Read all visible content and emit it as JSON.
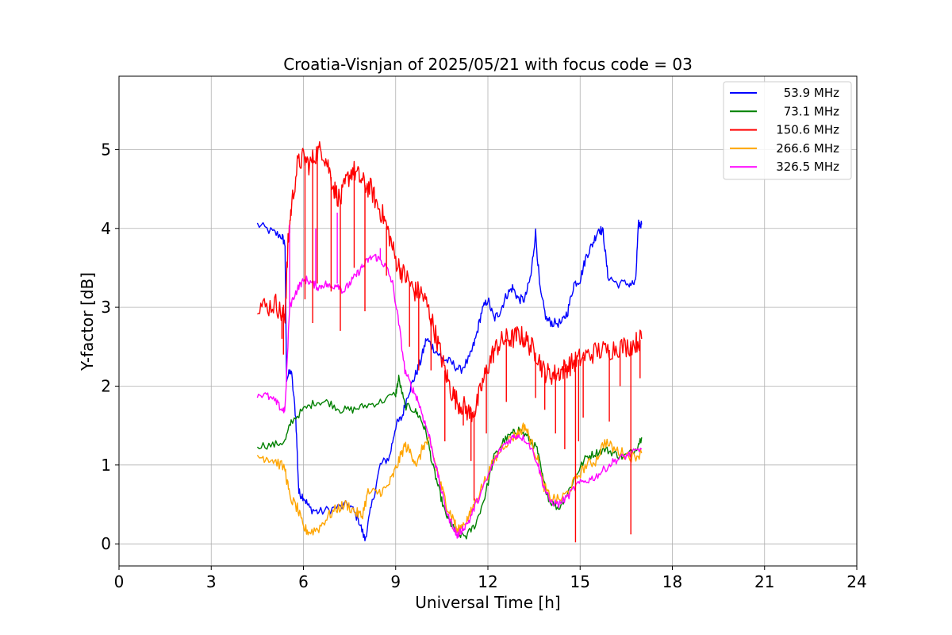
{
  "chart_data": {
    "type": "line",
    "title": "Croatia-Visnjan of 2025/05/21 with focus code = 03",
    "xlabel": "Universal Time [h]",
    "ylabel": "Y-factor [dB]",
    "xlim": [
      0,
      24
    ],
    "ylim": [
      -0.28,
      5.93
    ],
    "xticks": [
      0,
      3,
      6,
      9,
      12,
      15,
      18,
      21,
      24
    ],
    "yticks": [
      0,
      1,
      2,
      3,
      4,
      5
    ],
    "grid": true,
    "legend_position": "top-right",
    "series": [
      {
        "name": "53.9 MHz",
        "color": "#0000ff",
        "points": [
          [
            4.5,
            4.05
          ],
          [
            5.0,
            3.95
          ],
          [
            5.3,
            3.9
          ],
          [
            5.4,
            3.8
          ],
          [
            5.45,
            2.1
          ],
          [
            5.6,
            2.2
          ],
          [
            5.75,
            1.6
          ],
          [
            5.85,
            0.65
          ],
          [
            6.0,
            0.6
          ],
          [
            6.2,
            0.45
          ],
          [
            6.5,
            0.4
          ],
          [
            7.0,
            0.45
          ],
          [
            7.5,
            0.5
          ],
          [
            7.8,
            0.3
          ],
          [
            8.0,
            0.05
          ],
          [
            8.2,
            0.45
          ],
          [
            8.5,
            1.0
          ],
          [
            8.8,
            1.1
          ],
          [
            9.0,
            1.5
          ],
          [
            9.2,
            1.6
          ],
          [
            9.4,
            1.9
          ],
          [
            9.6,
            2.1
          ],
          [
            9.8,
            2.3
          ],
          [
            10.0,
            2.6
          ],
          [
            10.2,
            2.5
          ],
          [
            10.5,
            2.35
          ],
          [
            10.8,
            2.3
          ],
          [
            11.1,
            2.2
          ],
          [
            11.4,
            2.35
          ],
          [
            11.6,
            2.6
          ],
          [
            11.8,
            2.95
          ],
          [
            12.0,
            3.1
          ],
          [
            12.2,
            2.85
          ],
          [
            12.4,
            2.95
          ],
          [
            12.6,
            3.15
          ],
          [
            12.8,
            3.25
          ],
          [
            13.0,
            3.1
          ],
          [
            13.2,
            3.1
          ],
          [
            13.4,
            3.4
          ],
          [
            13.55,
            3.95
          ],
          [
            13.7,
            3.2
          ],
          [
            13.9,
            2.85
          ],
          [
            14.1,
            2.8
          ],
          [
            14.4,
            2.8
          ],
          [
            14.6,
            2.95
          ],
          [
            14.8,
            3.3
          ],
          [
            15.0,
            3.35
          ],
          [
            15.2,
            3.65
          ],
          [
            15.4,
            3.8
          ],
          [
            15.6,
            4.0
          ],
          [
            15.75,
            3.95
          ],
          [
            15.9,
            3.4
          ],
          [
            16.2,
            3.3
          ],
          [
            16.6,
            3.3
          ],
          [
            16.8,
            3.3
          ],
          [
            16.9,
            4.05
          ],
          [
            17.0,
            4.05
          ]
        ]
      },
      {
        "name": "73.1 MHz",
        "color": "#008000",
        "points": [
          [
            4.5,
            1.25
          ],
          [
            5.0,
            1.25
          ],
          [
            5.4,
            1.3
          ],
          [
            5.6,
            1.55
          ],
          [
            6.0,
            1.7
          ],
          [
            6.4,
            1.8
          ],
          [
            6.8,
            1.8
          ],
          [
            7.2,
            1.7
          ],
          [
            7.6,
            1.7
          ],
          [
            8.0,
            1.75
          ],
          [
            8.5,
            1.8
          ],
          [
            9.0,
            1.9
          ],
          [
            9.1,
            2.1
          ],
          [
            9.3,
            1.75
          ],
          [
            9.6,
            1.7
          ],
          [
            9.8,
            1.6
          ],
          [
            10.0,
            1.4
          ],
          [
            10.2,
            1.0
          ],
          [
            10.4,
            0.7
          ],
          [
            10.6,
            0.4
          ],
          [
            10.8,
            0.25
          ],
          [
            11.0,
            0.12
          ],
          [
            11.3,
            0.1
          ],
          [
            11.6,
            0.25
          ],
          [
            11.9,
            0.6
          ],
          [
            12.2,
            1.1
          ],
          [
            12.5,
            1.3
          ],
          [
            12.8,
            1.4
          ],
          [
            13.0,
            1.45
          ],
          [
            13.3,
            1.35
          ],
          [
            13.6,
            1.2
          ],
          [
            13.8,
            0.8
          ],
          [
            14.0,
            0.55
          ],
          [
            14.3,
            0.45
          ],
          [
            14.6,
            0.65
          ],
          [
            14.9,
            0.9
          ],
          [
            15.2,
            1.1
          ],
          [
            15.5,
            1.15
          ],
          [
            15.8,
            1.2
          ],
          [
            16.1,
            1.15
          ],
          [
            16.4,
            1.1
          ],
          [
            16.8,
            1.2
          ],
          [
            17.0,
            1.35
          ]
        ]
      },
      {
        "name": "150.6 MHz",
        "color": "#ff0000",
        "points": [
          [
            4.5,
            3.05
          ],
          [
            4.8,
            3.0
          ],
          [
            5.1,
            3.05
          ],
          [
            5.3,
            2.9
          ],
          [
            5.4,
            2.9
          ],
          [
            5.5,
            3.8
          ],
          [
            5.6,
            4.25
          ],
          [
            5.8,
            4.8
          ],
          [
            6.0,
            4.9
          ],
          [
            6.2,
            4.8
          ],
          [
            6.4,
            4.95
          ],
          [
            6.6,
            5.0
          ],
          [
            6.8,
            4.8
          ],
          [
            7.0,
            4.5
          ],
          [
            7.2,
            4.35
          ],
          [
            7.4,
            4.6
          ],
          [
            7.6,
            4.75
          ],
          [
            7.8,
            4.65
          ],
          [
            8.0,
            4.55
          ],
          [
            8.2,
            4.5
          ],
          [
            8.4,
            4.3
          ],
          [
            8.6,
            4.15
          ],
          [
            8.8,
            3.9
          ],
          [
            9.0,
            3.6
          ],
          [
            9.2,
            3.45
          ],
          [
            9.4,
            3.35
          ],
          [
            9.6,
            3.2
          ],
          [
            9.8,
            3.2
          ],
          [
            10.0,
            3.05
          ],
          [
            10.2,
            2.8
          ],
          [
            10.4,
            2.5
          ],
          [
            10.6,
            2.2
          ],
          [
            10.8,
            1.95
          ],
          [
            11.0,
            1.8
          ],
          [
            11.2,
            1.75
          ],
          [
            11.4,
            1.65
          ],
          [
            11.6,
            1.7
          ],
          [
            11.8,
            2.0
          ],
          [
            12.0,
            2.25
          ],
          [
            12.2,
            2.45
          ],
          [
            12.4,
            2.55
          ],
          [
            12.6,
            2.6
          ],
          [
            12.8,
            2.6
          ],
          [
            13.0,
            2.65
          ],
          [
            13.2,
            2.6
          ],
          [
            13.4,
            2.5
          ],
          [
            13.6,
            2.4
          ],
          [
            13.8,
            2.2
          ],
          [
            14.0,
            2.15
          ],
          [
            14.2,
            2.15
          ],
          [
            14.4,
            2.2
          ],
          [
            14.6,
            2.25
          ],
          [
            14.8,
            2.3
          ],
          [
            15.0,
            2.35
          ],
          [
            15.3,
            2.4
          ],
          [
            15.6,
            2.45
          ],
          [
            15.9,
            2.45
          ],
          [
            16.2,
            2.5
          ],
          [
            16.5,
            2.5
          ],
          [
            16.8,
            2.55
          ],
          [
            17.0,
            2.6
          ]
        ]
      },
      {
        "name": "266.6 MHz",
        "color": "#ffa500",
        "points": [
          [
            4.5,
            1.1
          ],
          [
            4.8,
            1.1
          ],
          [
            5.1,
            1.05
          ],
          [
            5.4,
            0.95
          ],
          [
            5.55,
            0.6
          ],
          [
            5.8,
            0.45
          ],
          [
            6.0,
            0.2
          ],
          [
            6.2,
            0.15
          ],
          [
            6.5,
            0.2
          ],
          [
            6.8,
            0.35
          ],
          [
            7.1,
            0.45
          ],
          [
            7.4,
            0.5
          ],
          [
            7.7,
            0.4
          ],
          [
            7.9,
            0.35
          ],
          [
            8.1,
            0.65
          ],
          [
            8.4,
            0.65
          ],
          [
            8.7,
            0.7
          ],
          [
            8.9,
            0.85
          ],
          [
            9.1,
            1.05
          ],
          [
            9.3,
            1.25
          ],
          [
            9.5,
            1.15
          ],
          [
            9.7,
            1.0
          ],
          [
            9.9,
            1.25
          ],
          [
            10.1,
            1.3
          ],
          [
            10.3,
            1.0
          ],
          [
            10.5,
            0.7
          ],
          [
            10.7,
            0.45
          ],
          [
            10.9,
            0.3
          ],
          [
            11.0,
            0.15
          ],
          [
            11.2,
            0.25
          ],
          [
            11.4,
            0.35
          ],
          [
            11.6,
            0.55
          ],
          [
            11.9,
            0.8
          ],
          [
            12.2,
            1.05
          ],
          [
            12.5,
            1.25
          ],
          [
            12.8,
            1.35
          ],
          [
            13.0,
            1.4
          ],
          [
            13.2,
            1.5
          ],
          [
            13.4,
            1.3
          ],
          [
            13.6,
            1.1
          ],
          [
            13.8,
            0.75
          ],
          [
            14.0,
            0.6
          ],
          [
            14.3,
            0.55
          ],
          [
            14.6,
            0.65
          ],
          [
            14.9,
            0.85
          ],
          [
            15.2,
            1.0
          ],
          [
            15.5,
            1.05
          ],
          [
            15.8,
            1.3
          ],
          [
            16.1,
            1.2
          ],
          [
            16.4,
            1.15
          ],
          [
            16.7,
            1.1
          ],
          [
            17.0,
            1.15
          ]
        ]
      },
      {
        "name": "326.5 MHz",
        "color": "#ff00ff",
        "points": [
          [
            4.5,
            1.9
          ],
          [
            4.8,
            1.88
          ],
          [
            5.1,
            1.8
          ],
          [
            5.3,
            1.7
          ],
          [
            5.4,
            1.7
          ],
          [
            5.55,
            3.0
          ],
          [
            5.7,
            3.15
          ],
          [
            5.9,
            3.3
          ],
          [
            6.1,
            3.35
          ],
          [
            6.3,
            3.3
          ],
          [
            6.5,
            3.25
          ],
          [
            6.7,
            3.3
          ],
          [
            6.9,
            3.25
          ],
          [
            7.1,
            3.3
          ],
          [
            7.3,
            3.2
          ],
          [
            7.5,
            3.3
          ],
          [
            7.7,
            3.4
          ],
          [
            7.9,
            3.5
          ],
          [
            8.1,
            3.6
          ],
          [
            8.3,
            3.65
          ],
          [
            8.5,
            3.6
          ],
          [
            8.7,
            3.5
          ],
          [
            8.9,
            3.3
          ],
          [
            9.1,
            2.8
          ],
          [
            9.3,
            2.2
          ],
          [
            9.5,
            2.0
          ],
          [
            9.7,
            1.85
          ],
          [
            9.9,
            1.6
          ],
          [
            10.1,
            1.35
          ],
          [
            10.3,
            1.0
          ],
          [
            10.5,
            0.65
          ],
          [
            10.7,
            0.35
          ],
          [
            10.9,
            0.2
          ],
          [
            11.0,
            0.1
          ],
          [
            11.2,
            0.2
          ],
          [
            11.4,
            0.3
          ],
          [
            11.6,
            0.5
          ],
          [
            11.9,
            0.75
          ],
          [
            12.2,
            1.05
          ],
          [
            12.5,
            1.25
          ],
          [
            12.8,
            1.35
          ],
          [
            13.0,
            1.38
          ],
          [
            13.3,
            1.3
          ],
          [
            13.6,
            1.05
          ],
          [
            13.8,
            0.75
          ],
          [
            14.0,
            0.55
          ],
          [
            14.3,
            0.5
          ],
          [
            14.6,
            0.6
          ],
          [
            14.9,
            0.75
          ],
          [
            15.2,
            0.8
          ],
          [
            15.5,
            0.85
          ],
          [
            15.8,
            0.95
          ],
          [
            16.1,
            1.05
          ],
          [
            16.4,
            1.1
          ],
          [
            16.7,
            1.15
          ],
          [
            17.0,
            1.2
          ]
        ]
      }
    ],
    "spikes": [
      {
        "series": "150.6 MHz",
        "x": [
          5.3,
          5.35,
          6.05,
          6.3,
          6.45,
          6.9,
          7.2,
          7.65,
          8.0,
          8.7,
          9.45,
          9.75,
          10.15,
          10.6,
          11.2,
          11.45,
          11.55,
          11.95,
          12.6,
          13.55,
          13.85,
          14.2,
          14.5,
          14.85,
          14.95,
          15.1,
          15.95,
          16.3,
          16.65,
          16.95
        ],
        "y": [
          2.6,
          2.4,
          3.1,
          2.8,
          3.3,
          3.2,
          2.7,
          3.5,
          2.95,
          3.4,
          2.5,
          2.2,
          2.2,
          1.3,
          1.5,
          1.05,
          0.55,
          1.4,
          1.8,
          1.85,
          1.7,
          1.4,
          1.2,
          0.02,
          1.3,
          1.6,
          1.55,
          2.0,
          0.12,
          2.1
        ]
      },
      {
        "series": "326.5 MHz",
        "x": [
          5.55,
          6.4,
          7.1,
          7.9,
          8.5
        ],
        "y": [
          4.05,
          4.0,
          4.2,
          3.55,
          3.75
        ]
      }
    ]
  }
}
